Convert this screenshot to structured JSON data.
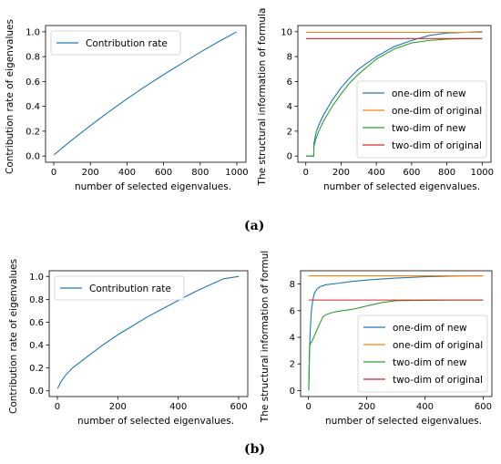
{
  "figure": {
    "caption_a": "(a)",
    "caption_b": "(b)"
  },
  "colors": {
    "blue": "#1f77b4",
    "orange": "#ff7f0e",
    "green": "#2ca02c",
    "red": "#d62728"
  },
  "chart_data": [
    {
      "id": "a-left",
      "type": "line",
      "xlabel": "number of selected eigenvalues.",
      "ylabel": "Contribution rate of eigenvalues",
      "xlim": [
        -45,
        1050
      ],
      "ylim": [
        -0.05,
        1.05
      ],
      "xticks": [
        0,
        200,
        400,
        600,
        800,
        1000
      ],
      "yticks": [
        0.0,
        0.2,
        0.4,
        0.6,
        0.8,
        1.0
      ],
      "ytick_labels": [
        "0.0",
        "0.2",
        "0.4",
        "0.6",
        "0.8",
        "1.0"
      ],
      "grid": false,
      "legend": "top-left",
      "series": [
        {
          "name": "Contribution rate",
          "color": "#1f77b4",
          "x": [
            1,
            100,
            200,
            300,
            400,
            500,
            600,
            700,
            800,
            900,
            1000
          ],
          "y": [
            0.01,
            0.13,
            0.245,
            0.355,
            0.46,
            0.56,
            0.655,
            0.745,
            0.835,
            0.92,
            1.0
          ]
        }
      ]
    },
    {
      "id": "a-right",
      "type": "line",
      "xlabel": "number of selected eigenvalues.",
      "ylabel": "The structural information of formula",
      "xlim": [
        -45,
        1050
      ],
      "ylim": [
        -0.5,
        10.5
      ],
      "xticks": [
        0,
        200,
        400,
        600,
        800,
        1000
      ],
      "yticks": [
        0,
        2,
        4,
        6,
        8,
        10
      ],
      "ytick_labels": [
        "0",
        "2",
        "4",
        "6",
        "8",
        "10"
      ],
      "grid": false,
      "legend": "bottom-right",
      "series": [
        {
          "name": "one-dim of new",
          "color": "#1f77b4",
          "x": [
            1,
            45,
            46,
            60,
            80,
            100,
            150,
            200,
            250,
            300,
            400,
            500,
            600,
            700,
            800,
            900,
            1000
          ],
          "y": [
            0,
            0,
            1.0,
            2.0,
            2.7,
            3.3,
            4.5,
            5.5,
            6.3,
            7.0,
            8.0,
            8.8,
            9.3,
            9.7,
            9.9,
            9.95,
            10.0
          ]
        },
        {
          "name": "one-dim of original",
          "color": "#ff7f0e",
          "x": [
            1,
            1000
          ],
          "y": [
            9.95,
            9.95
          ]
        },
        {
          "name": "two-dim of new",
          "color": "#2ca02c",
          "x": [
            1,
            45,
            46,
            60,
            80,
            100,
            150,
            200,
            250,
            300,
            400,
            500,
            600,
            700,
            800,
            900,
            1000
          ],
          "y": [
            0,
            0,
            0.8,
            1.5,
            2.2,
            2.8,
            4.0,
            5.0,
            5.9,
            6.6,
            7.8,
            8.6,
            9.1,
            9.3,
            9.4,
            9.45,
            9.45
          ]
        },
        {
          "name": "two-dim of original",
          "color": "#d62728",
          "x": [
            1,
            1000
          ],
          "y": [
            9.45,
            9.45
          ]
        }
      ]
    },
    {
      "id": "b-left",
      "type": "line",
      "xlabel": "number of selected eigenvalues.",
      "ylabel": "Contribution rate of eigenvalues",
      "xlim": [
        -27,
        630
      ],
      "ylim": [
        -0.05,
        1.05
      ],
      "xticks": [
        0,
        200,
        400,
        600
      ],
      "yticks": [
        0.0,
        0.2,
        0.4,
        0.6,
        0.8,
        1.0
      ],
      "ytick_labels": [
        "0.0",
        "0.2",
        "0.4",
        "0.6",
        "0.8",
        "1.0"
      ],
      "grid": false,
      "legend": "top-left",
      "series": [
        {
          "name": "Contribution rate",
          "color": "#1f77b4",
          "x": [
            1,
            10,
            25,
            50,
            100,
            150,
            200,
            250,
            300,
            350,
            400,
            450,
            500,
            550,
            600
          ],
          "y": [
            0.02,
            0.07,
            0.13,
            0.2,
            0.3,
            0.4,
            0.49,
            0.57,
            0.65,
            0.72,
            0.79,
            0.86,
            0.92,
            0.98,
            1.0
          ]
        }
      ]
    },
    {
      "id": "b-right",
      "type": "line",
      "xlabel": "number of selected eigenvalues.",
      "ylabel": "The structural information of formul",
      "xlim": [
        -27,
        630
      ],
      "ylim": [
        -0.45,
        9.0
      ],
      "xticks": [
        0,
        200,
        400,
        600
      ],
      "yticks": [
        0,
        2,
        4,
        6,
        8
      ],
      "ytick_labels": [
        "0",
        "2",
        "4",
        "6",
        "8"
      ],
      "grid": false,
      "legend": "bottom-right",
      "series": [
        {
          "name": "one-dim of new",
          "color": "#1f77b4",
          "x": [
            1,
            3,
            6,
            10,
            15,
            20,
            30,
            40,
            60,
            100,
            150,
            200,
            300,
            400,
            500,
            600
          ],
          "y": [
            0,
            2.5,
            4.5,
            6.0,
            6.8,
            7.3,
            7.65,
            7.8,
            7.95,
            8.05,
            8.2,
            8.3,
            8.45,
            8.55,
            8.6,
            8.62
          ]
        },
        {
          "name": "one-dim of original",
          "color": "#ff7f0e",
          "x": [
            1,
            600
          ],
          "y": [
            8.62,
            8.62
          ]
        },
        {
          "name": "two-dim of new",
          "color": "#2ca02c",
          "x": [
            1,
            4,
            8,
            12,
            20,
            30,
            40,
            50,
            60,
            80,
            100,
            150,
            200,
            250,
            300,
            400,
            500,
            600
          ],
          "y": [
            0,
            3.3,
            3.6,
            3.7,
            4.1,
            4.6,
            5.1,
            5.55,
            5.7,
            5.85,
            5.95,
            6.1,
            6.35,
            6.6,
            6.75,
            6.78,
            6.8,
            6.8
          ]
        },
        {
          "name": "two-dim of original",
          "color": "#d62728",
          "x": [
            1,
            600
          ],
          "y": [
            6.8,
            6.8
          ]
        }
      ]
    }
  ]
}
